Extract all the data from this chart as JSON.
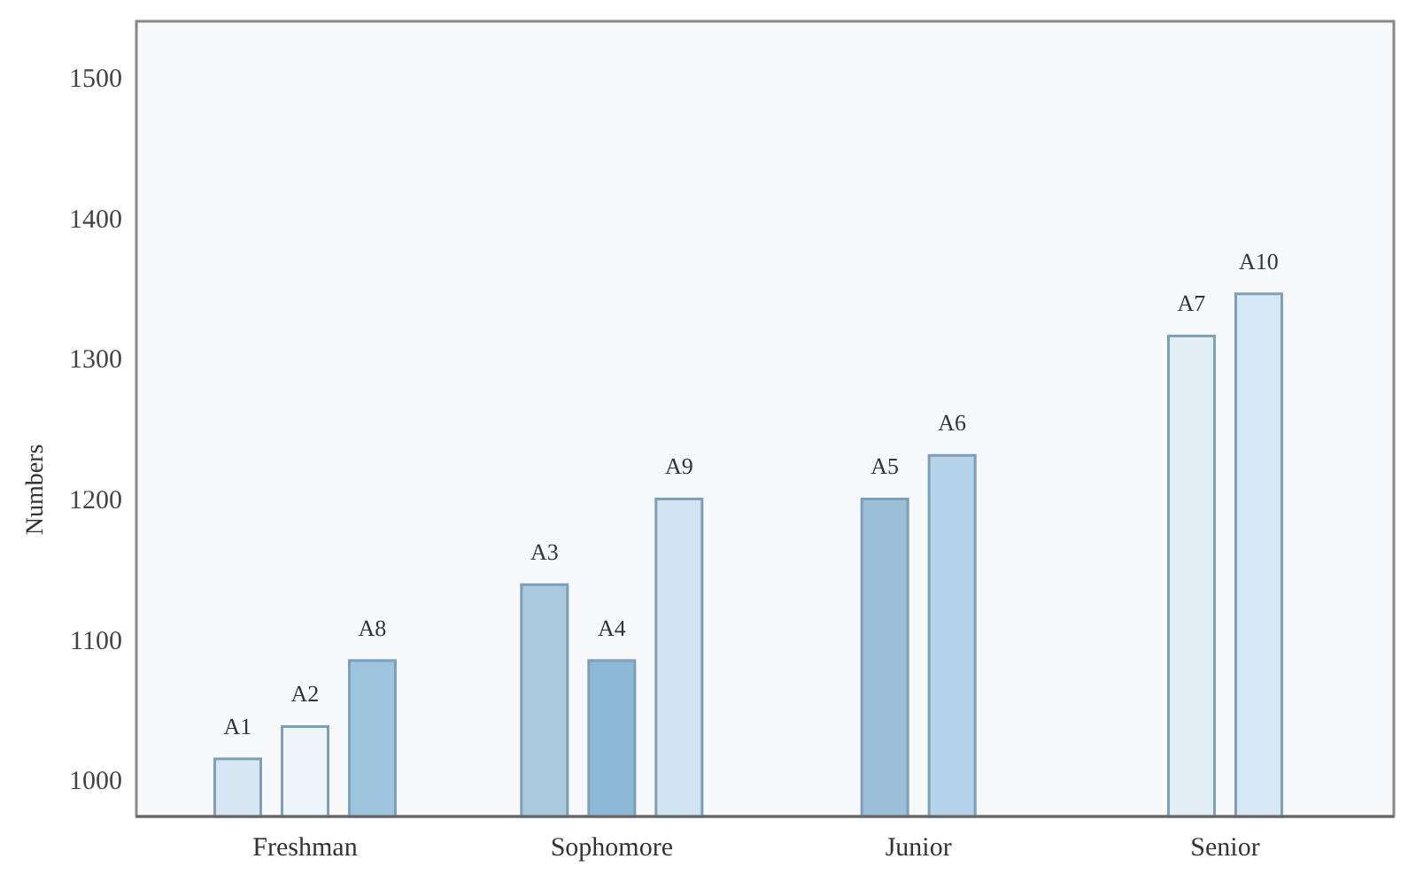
{
  "chart_data": {
    "type": "bar",
    "ylabel": "Numbers",
    "categories": [
      "Freshman",
      "Sophomore",
      "Junior",
      "Senior"
    ],
    "series": [
      {
        "colors": [
          "#d6e6f2",
          "#a9c9dd",
          "#9bbfd8",
          "#e3eef6"
        ],
        "values": [
          1015,
          1139,
          1200,
          1316
        ],
        "value_labels": [
          "A1",
          "A3",
          "A5",
          "A7"
        ]
      },
      {
        "colors": [
          "#eef5fa",
          "#8db8d6",
          "#b5d3ea",
          "#d6e8f5"
        ],
        "values": [
          1038,
          1085,
          1231,
          1346
        ],
        "value_labels": [
          "A2",
          "A4",
          "A6",
          "A10"
        ]
      },
      {
        "colors": [
          "#9fc4e0",
          "#d0e4f2",
          null,
          null
        ],
        "values": [
          1085,
          1200,
          null,
          null
        ],
        "value_labels": [
          "A8",
          "A9",
          null,
          null
        ]
      }
    ],
    "ylim": [
      974,
      1540
    ],
    "yticks": [
      1000,
      1100,
      1200,
      1300,
      1400,
      1500
    ],
    "grid": false
  }
}
